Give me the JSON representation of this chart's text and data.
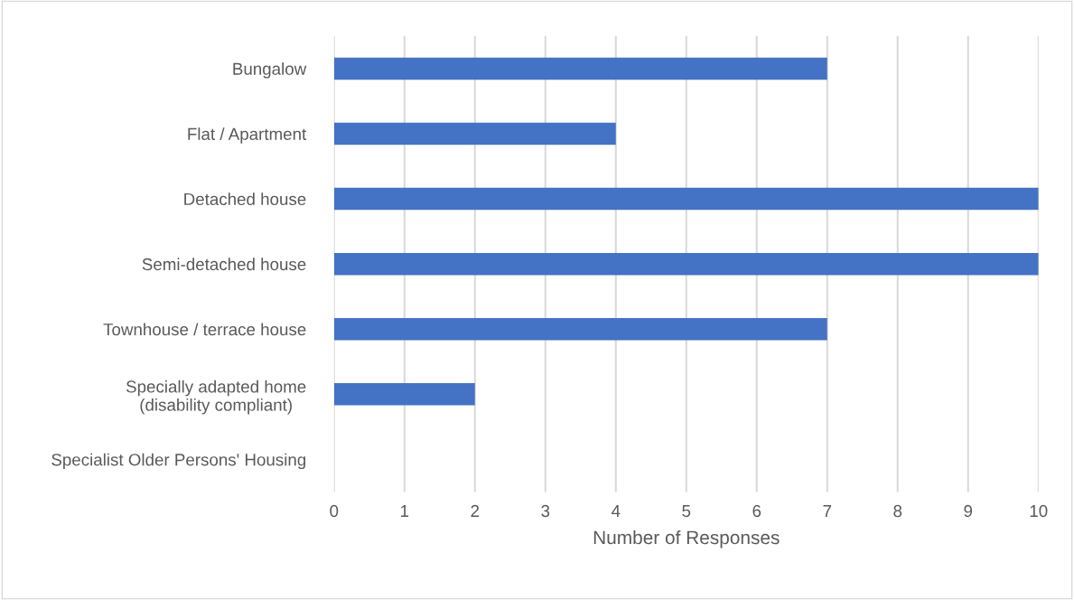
{
  "chart_data": {
    "type": "bar",
    "orientation": "horizontal",
    "xlabel": "Number of Responses",
    "categories": [
      "Bungalow",
      "Flat / Apartment",
      "Detached house",
      "Semi-detached house",
      "Townhouse / terrace house",
      "Specially adapted home\n(disability compliant)",
      "Specialist Older Persons' Housing"
    ],
    "values": [
      7,
      4,
      10,
      10,
      7,
      2,
      0
    ],
    "color": "#4472c4",
    "xlim": [
      0,
      10
    ],
    "xticks": [
      0,
      1,
      2,
      3,
      4,
      5,
      6,
      7,
      8,
      9,
      10
    ],
    "grid": "x"
  }
}
